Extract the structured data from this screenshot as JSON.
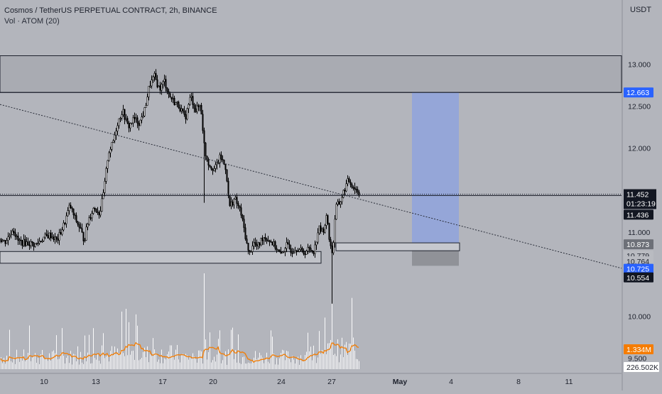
{
  "header": {
    "title": "Cosmos / TetherUS PERPETUAL CONTRACT, 2h, BINANCE",
    "indicator_label": "Vol · ATOM (20)",
    "gear_icon": "dot-icon"
  },
  "price_axis": {
    "currency": "USDT",
    "ticks": [
      "13.000",
      "12.500",
      "12.000",
      "11.000",
      "10.000",
      "9.500"
    ]
  },
  "time_axis": {
    "ticks": [
      "10",
      "13",
      "17",
      "20",
      "24",
      "27",
      "May",
      "4",
      "8",
      "11"
    ]
  },
  "badges": {
    "zone_top": "12.663",
    "last_price": "11.452",
    "countdown": "01:23:19",
    "line_price": "11.436",
    "box_top": "10.873",
    "box_bottom": "10.779",
    "stop_level": "10.764",
    "entry_level": "10.725",
    "low_level": "10.554",
    "vol_ma": "1.334M",
    "vol_last": "226.502K"
  },
  "colors": {
    "background": "#b3b5bc",
    "candle": "#000000",
    "volume": "#ffffff",
    "volume_ma": "#f0800d",
    "target_zone": "#8fa3dd",
    "stop_zone": "#8c8e94",
    "badge_blue": "#2962ff",
    "badge_dark": "#131722",
    "badge_orange": "#f57c00"
  },
  "chart_data": {
    "type": "candlestick",
    "title": "Cosmos / TetherUS PERPETUAL CONTRACT, 2h, BINANCE",
    "ylim": [
      9.37,
      13.56
    ],
    "grid": false,
    "x_ticks": [
      "10",
      "13",
      "17",
      "20",
      "24",
      "27",
      "May",
      "4",
      "8",
      "11"
    ],
    "y_ticks": [
      13.0,
      12.5,
      12.0,
      11.0,
      10.0,
      9.5
    ],
    "price_path": [
      {
        "t": 0,
        "p": 10.92
      },
      {
        "t": 6,
        "p": 10.88
      },
      {
        "t": 12,
        "p": 10.95
      },
      {
        "t": 18,
        "p": 11.05
      },
      {
        "t": 24,
        "p": 10.9
      },
      {
        "t": 30,
        "p": 10.88
      },
      {
        "t": 40,
        "p": 10.87
      },
      {
        "t": 50,
        "p": 10.85
      },
      {
        "t": 60,
        "p": 10.93
      },
      {
        "t": 70,
        "p": 10.97
      },
      {
        "t": 80,
        "p": 10.9
      },
      {
        "t": 90,
        "p": 11.1
      },
      {
        "t": 98,
        "p": 11.32
      },
      {
        "t": 104,
        "p": 11.18
      },
      {
        "t": 112,
        "p": 11.05
      },
      {
        "t": 118,
        "p": 10.9
      },
      {
        "t": 124,
        "p": 11.15
      },
      {
        "t": 132,
        "p": 11.3
      },
      {
        "t": 140,
        "p": 11.22
      },
      {
        "t": 146,
        "p": 11.5
      },
      {
        "t": 152,
        "p": 11.95
      },
      {
        "t": 158,
        "p": 12.05
      },
      {
        "t": 165,
        "p": 12.3
      },
      {
        "t": 172,
        "p": 12.45
      },
      {
        "t": 180,
        "p": 12.25
      },
      {
        "t": 188,
        "p": 12.35
      },
      {
        "t": 196,
        "p": 12.3
      },
      {
        "t": 203,
        "p": 12.45
      },
      {
        "t": 210,
        "p": 12.75
      },
      {
        "t": 217,
        "p": 12.85
      },
      {
        "t": 224,
        "p": 12.7
      },
      {
        "t": 231,
        "p": 12.8
      },
      {
        "t": 238,
        "p": 12.62
      },
      {
        "t": 245,
        "p": 12.55
      },
      {
        "t": 252,
        "p": 12.5
      },
      {
        "t": 260,
        "p": 12.35
      },
      {
        "t": 268,
        "p": 12.62
      },
      {
        "t": 275,
        "p": 12.45
      },
      {
        "t": 282,
        "p": 12.52
      },
      {
        "t": 288,
        "p": 11.95
      },
      {
        "t": 294,
        "p": 11.8
      },
      {
        "t": 302,
        "p": 11.75
      },
      {
        "t": 310,
        "p": 11.9
      },
      {
        "t": 318,
        "p": 11.75
      },
      {
        "t": 322,
        "p": 11.3
      },
      {
        "t": 330,
        "p": 11.4
      },
      {
        "t": 338,
        "p": 11.25
      },
      {
        "t": 344,
        "p": 11.0
      },
      {
        "t": 350,
        "p": 10.72
      },
      {
        "t": 356,
        "p": 10.88
      },
      {
        "t": 362,
        "p": 10.82
      },
      {
        "t": 370,
        "p": 10.95
      },
      {
        "t": 380,
        "p": 10.9
      },
      {
        "t": 388,
        "p": 10.82
      },
      {
        "t": 395,
        "p": 10.72
      },
      {
        "t": 402,
        "p": 10.85
      },
      {
        "t": 410,
        "p": 10.78
      },
      {
        "t": 418,
        "p": 10.82
      },
      {
        "t": 426,
        "p": 10.75
      },
      {
        "t": 434,
        "p": 10.8
      },
      {
        "t": 442,
        "p": 10.78
      },
      {
        "t": 448,
        "p": 11.05
      },
      {
        "t": 454,
        "p": 11.0
      },
      {
        "t": 460,
        "p": 11.2
      },
      {
        "t": 464,
        "p": 10.85
      },
      {
        "t": 468,
        "p": 10.75
      },
      {
        "t": 472,
        "p": 11.3
      },
      {
        "t": 478,
        "p": 11.35
      },
      {
        "t": 484,
        "p": 11.5
      },
      {
        "t": 490,
        "p": 11.62
      },
      {
        "t": 496,
        "p": 11.55
      },
      {
        "t": 502,
        "p": 11.5
      },
      {
        "t": 508,
        "p": 11.45
      }
    ],
    "annotations": {
      "resistance_zone": [
        12.663,
        13.1
      ],
      "support_box_left": [
        10.63,
        10.77
      ],
      "demand_box": [
        10.779,
        10.873
      ],
      "long_position": {
        "target": 12.663,
        "entry": 10.873,
        "stop": 10.6
      },
      "last_price": 11.452,
      "horizontal_line": 11.436
    },
    "volume": {
      "last": "226.502K",
      "ma": "1.334M",
      "ma_label": "Vol · ATOM (20)"
    }
  }
}
